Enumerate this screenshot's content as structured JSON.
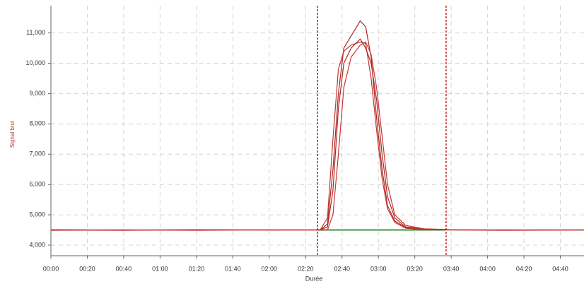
{
  "chart_data": {
    "type": "line",
    "xlabel": "Durée",
    "ylabel": "Signal brut",
    "x": [
      0,
      40,
      80,
      120,
      148,
      152,
      155,
      158,
      161,
      165,
      170,
      173,
      176,
      179,
      182,
      185,
      189,
      195,
      205,
      220,
      250,
      293
    ],
    "series": [
      {
        "color": "#b22222",
        "values": [
          4500,
          4490,
          4510,
          4500,
          4500,
          4700,
          6500,
          9000,
          10500,
          10900,
          11400,
          11200,
          10200,
          8200,
          6500,
          5300,
          4800,
          4580,
          4520,
          4500,
          4490,
          4500
        ]
      },
      {
        "color": "#c0392b",
        "values": [
          4510,
          4500,
          4490,
          4505,
          4500,
          4900,
          7500,
          9800,
          10400,
          10600,
          10700,
          10650,
          9500,
          7800,
          6200,
          5200,
          4750,
          4560,
          4510,
          4500,
          4505,
          4495
        ]
      },
      {
        "color": "#a52a2a",
        "values": [
          4490,
          4505,
          4500,
          4495,
          4500,
          4600,
          5800,
          8500,
          10000,
          10500,
          10800,
          10500,
          10000,
          8800,
          7000,
          5600,
          4900,
          4600,
          4530,
          4505,
          4500,
          4500
        ]
      },
      {
        "color": "#cd3333",
        "values": [
          4500,
          4495,
          4505,
          4500,
          4500,
          4500,
          5000,
          7000,
          9200,
          10200,
          10600,
          10700,
          10300,
          9200,
          7600,
          6000,
          5000,
          4650,
          4540,
          4510,
          4495,
          4505
        ]
      }
    ],
    "reference_line": {
      "x": [
        146.6,
        217.2
      ],
      "values": [
        4500,
        4500
      ],
      "color": "#3a9a3a"
    },
    "vlines": [
      146.6,
      217.2
    ],
    "vline_color": "#c00000",
    "xlim": [
      0,
      293
    ],
    "ylim": [
      3650,
      11900
    ],
    "xticks": [
      {
        "value": 0,
        "label": "00:00"
      },
      {
        "value": 20,
        "label": "00:20"
      },
      {
        "value": 40,
        "label": "00:40"
      },
      {
        "value": 60,
        "label": "01:00"
      },
      {
        "value": 80,
        "label": "01:20"
      },
      {
        "value": 100,
        "label": "01:40"
      },
      {
        "value": 120,
        "label": "02:00"
      },
      {
        "value": 140,
        "label": "02:20"
      },
      {
        "value": 160,
        "label": "02:40"
      },
      {
        "value": 180,
        "label": "03:00"
      },
      {
        "value": 200,
        "label": "03:20"
      },
      {
        "value": 220,
        "label": "03:40"
      },
      {
        "value": 240,
        "label": "04:00"
      },
      {
        "value": 260,
        "label": "04:20"
      },
      {
        "value": 280,
        "label": "04:40"
      }
    ],
    "yticks": [
      {
        "value": 4000,
        "label": "4,000"
      },
      {
        "value": 5000,
        "label": "5,000"
      },
      {
        "value": 6000,
        "label": "6,000"
      },
      {
        "value": 7000,
        "label": "7,000"
      },
      {
        "value": 8000,
        "label": "8,000"
      },
      {
        "value": 9000,
        "label": "9,000"
      },
      {
        "value": 10000,
        "label": "10,000"
      },
      {
        "value": 11000,
        "label": "11,000"
      }
    ],
    "grid": true
  }
}
